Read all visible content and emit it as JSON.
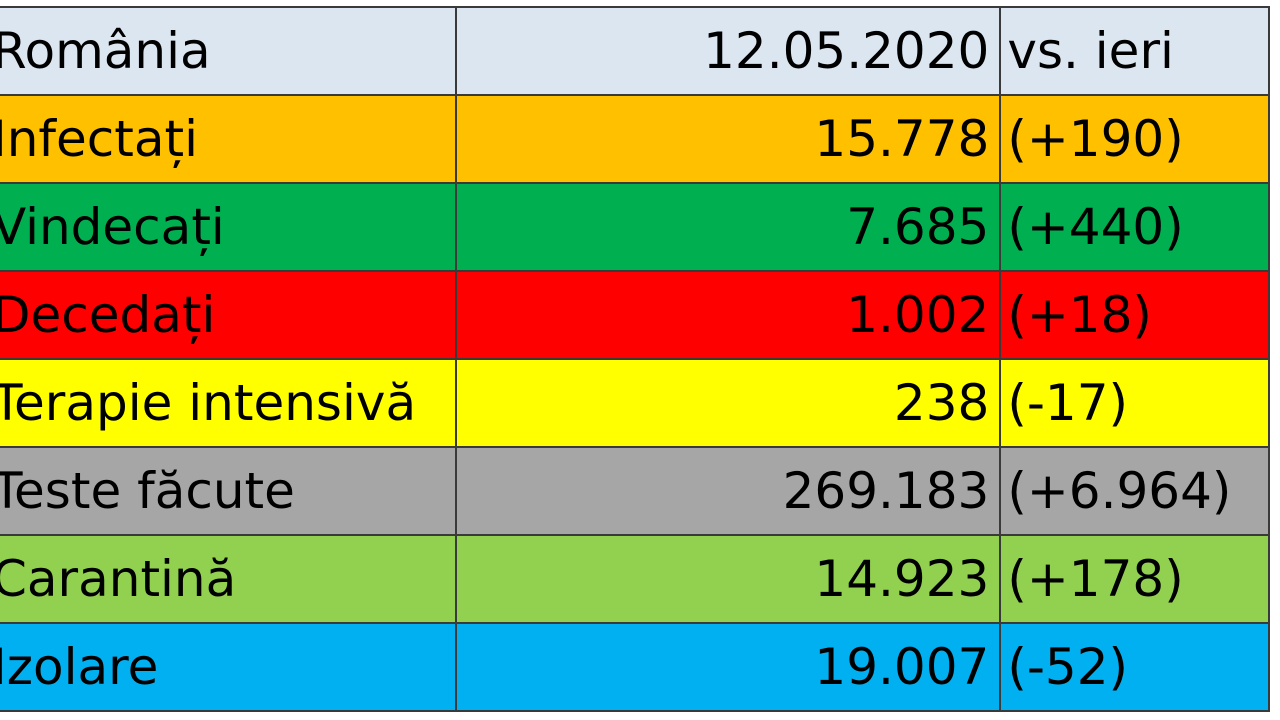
{
  "chart_data": {
    "type": "table",
    "header": {
      "label": "România",
      "date": "12.05.2020",
      "delta_header": "vs. ieri",
      "color": "#dce6f1"
    },
    "rows": [
      {
        "label": "Infectați",
        "value": "15.778",
        "delta": "(+190)",
        "color": "#ffc000"
      },
      {
        "label": "Vindecați",
        "value": "7.685",
        "delta": "(+440)",
        "color": "#00b050"
      },
      {
        "label": "Decedați",
        "value": "1.002",
        "delta": "(+18)",
        "color": "#ff0000"
      },
      {
        "label": "Terapie intensivă",
        "value": "238",
        "delta": "(-17)",
        "color": "#ffff00"
      },
      {
        "label": "Teste făcute",
        "value": "269.183",
        "delta": "(+6.964)",
        "color": "#a6a6a6"
      },
      {
        "label": "Carantină",
        "value": "14.923",
        "delta": "(+178)",
        "color": "#92d050"
      },
      {
        "label": "Izolare",
        "value": "19.007",
        "delta": "(-52)",
        "color": "#00b0f0"
      }
    ]
  }
}
